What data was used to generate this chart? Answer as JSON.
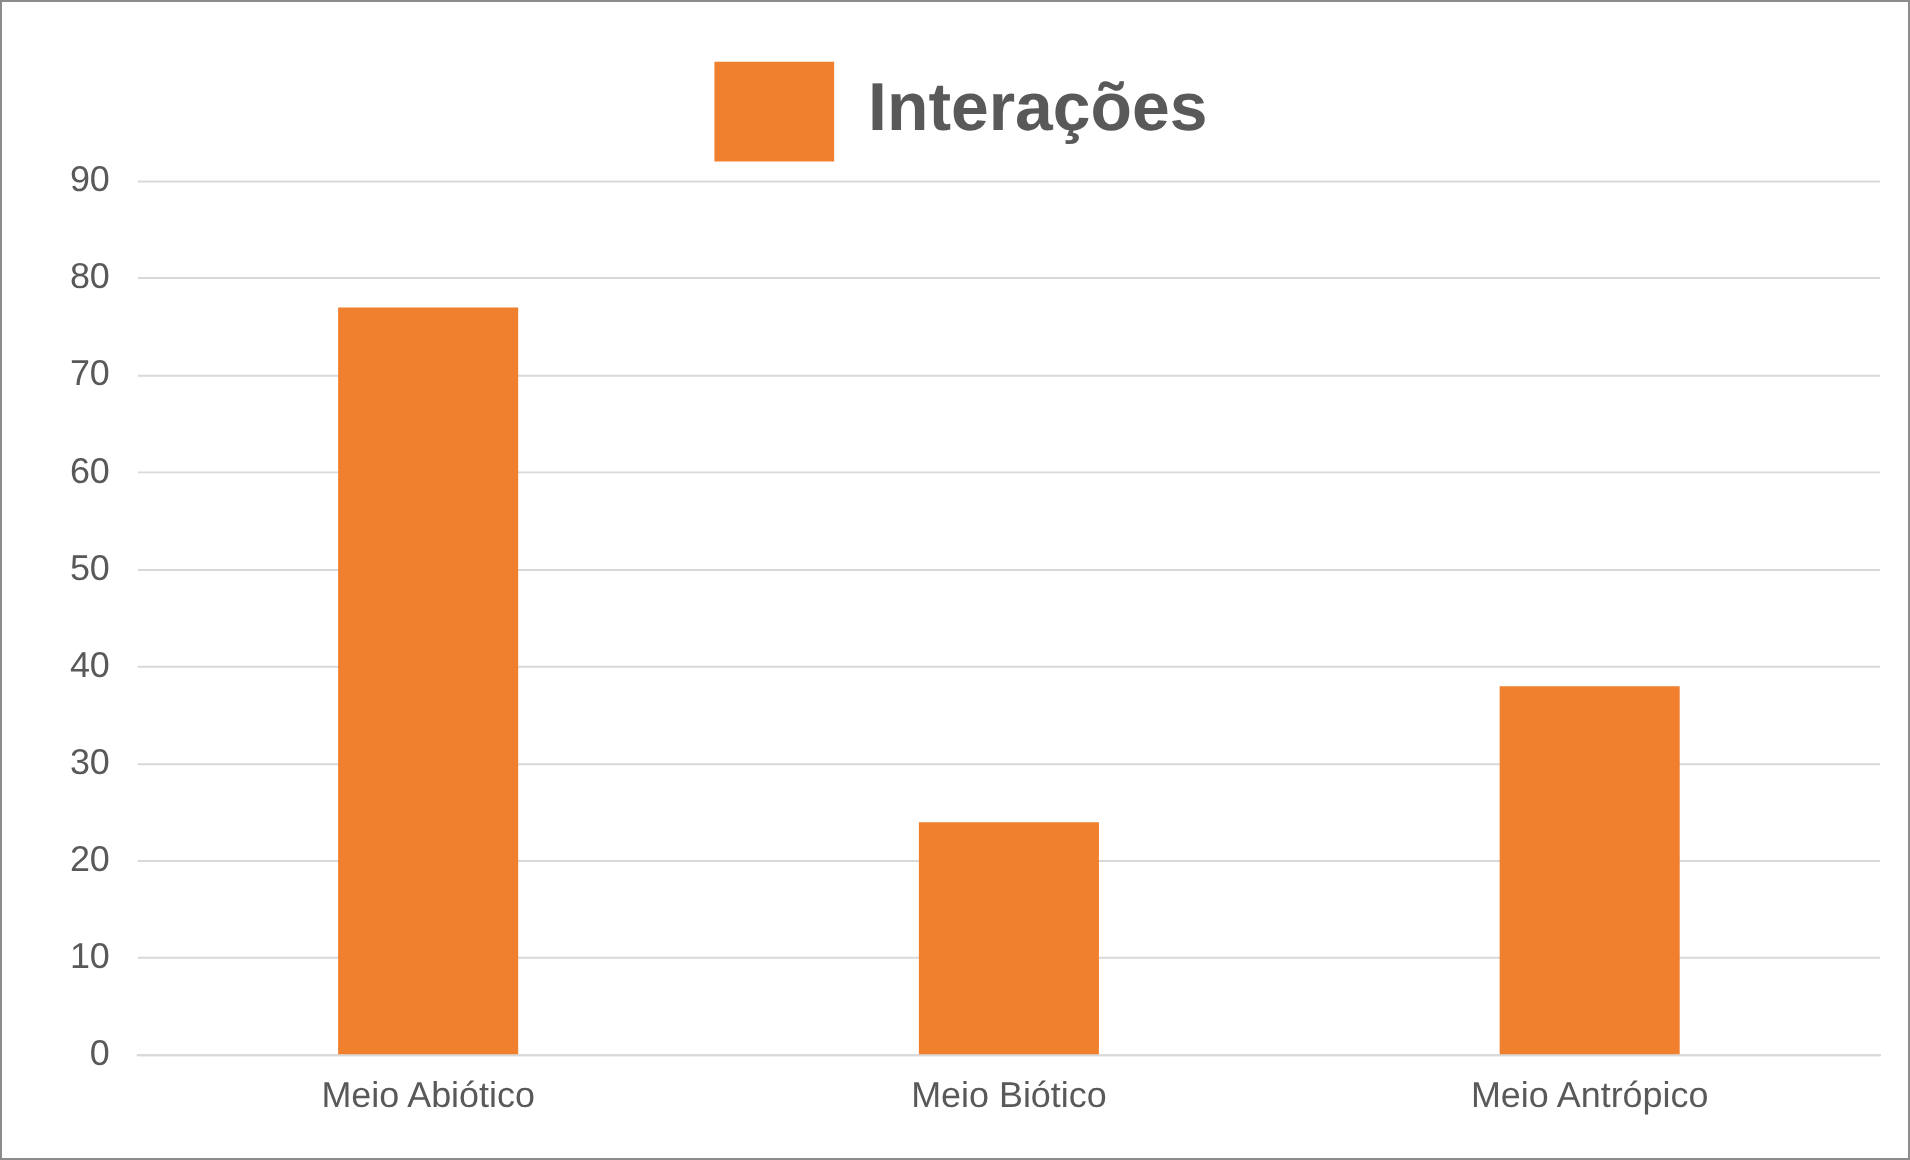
{
  "chart_data": {
    "type": "bar",
    "categories": [
      "Meio Abiótico",
      "Meio Biótico",
      "Meio Antrópico"
    ],
    "series": [
      {
        "name": "Interações",
        "color": "#f07f2e",
        "values": [
          77,
          24,
          38
        ]
      }
    ],
    "ylim": [
      0,
      90
    ],
    "yticks": [
      0,
      10,
      20,
      30,
      40,
      50,
      60,
      70,
      80,
      90
    ],
    "grid": "y",
    "legend": "top"
  }
}
